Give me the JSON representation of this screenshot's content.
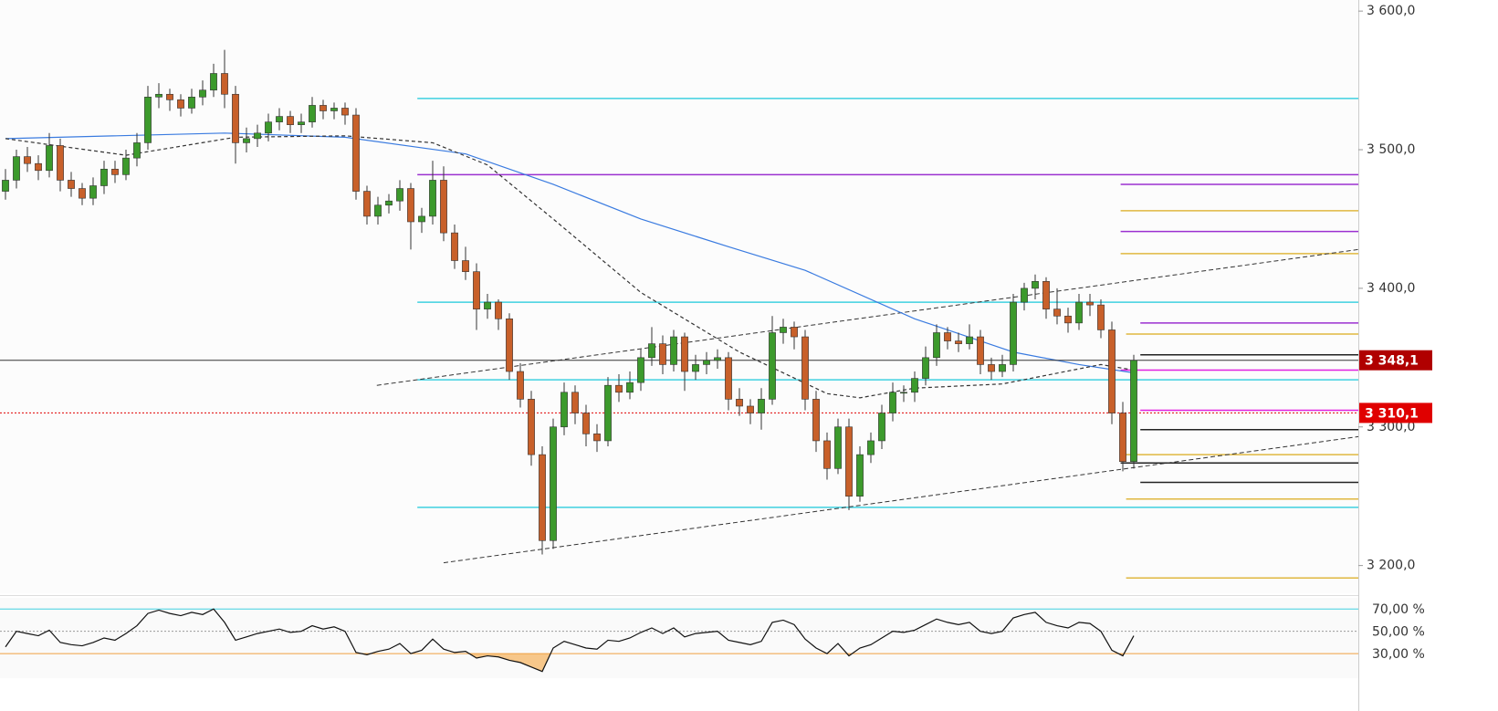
{
  "chart_data": {
    "type": "candlestick",
    "xlim": [
      -0.5,
      123.5
    ],
    "ylim": [
      3180,
      3608
    ],
    "yticks": [
      {
        "value": 3200,
        "label": "3 200,0"
      },
      {
        "value": 3300,
        "label": "3 300,0"
      },
      {
        "value": 3400,
        "label": "3 400,0"
      },
      {
        "value": 3500,
        "label": "3 500,0"
      },
      {
        "value": 3600,
        "label": "3 600,0"
      }
    ],
    "up_color": "#3c9a2c",
    "down_color": "#c8602a",
    "ohlc": [
      [
        3470,
        3486,
        3464,
        3478
      ],
      [
        3478,
        3500,
        3472,
        3495
      ],
      [
        3495,
        3502,
        3484,
        3490
      ],
      [
        3490,
        3496,
        3478,
        3485
      ],
      [
        3485,
        3512,
        3480,
        3503
      ],
      [
        3503,
        3508,
        3470,
        3478
      ],
      [
        3478,
        3484,
        3466,
        3472
      ],
      [
        3472,
        3476,
        3460,
        3465
      ],
      [
        3465,
        3480,
        3460,
        3474
      ],
      [
        3474,
        3492,
        3468,
        3486
      ],
      [
        3486,
        3492,
        3476,
        3482
      ],
      [
        3482,
        3500,
        3478,
        3494
      ],
      [
        3494,
        3512,
        3488,
        3505
      ],
      [
        3505,
        3546,
        3500,
        3538
      ],
      [
        3538,
        3548,
        3530,
        3540
      ],
      [
        3540,
        3544,
        3528,
        3536
      ],
      [
        3536,
        3540,
        3524,
        3530
      ],
      [
        3530,
        3544,
        3526,
        3538
      ],
      [
        3538,
        3550,
        3532,
        3543
      ],
      [
        3543,
        3562,
        3538,
        3555
      ],
      [
        3555,
        3572,
        3530,
        3540
      ],
      [
        3540,
        3546,
        3490,
        3505
      ],
      [
        3505,
        3516,
        3498,
        3508
      ],
      [
        3508,
        3518,
        3502,
        3512
      ],
      [
        3512,
        3526,
        3506,
        3520
      ],
      [
        3520,
        3530,
        3514,
        3524
      ],
      [
        3524,
        3528,
        3512,
        3518
      ],
      [
        3518,
        3526,
        3512,
        3520
      ],
      [
        3520,
        3538,
        3516,
        3532
      ],
      [
        3532,
        3536,
        3522,
        3528
      ],
      [
        3528,
        3534,
        3522,
        3530
      ],
      [
        3530,
        3534,
        3518,
        3525
      ],
      [
        3525,
        3530,
        3464,
        3470
      ],
      [
        3470,
        3474,
        3446,
        3452
      ],
      [
        3452,
        3466,
        3446,
        3460
      ],
      [
        3460,
        3468,
        3454,
        3463
      ],
      [
        3463,
        3478,
        3456,
        3472
      ],
      [
        3472,
        3476,
        3428,
        3448
      ],
      [
        3448,
        3458,
        3440,
        3452
      ],
      [
        3452,
        3492,
        3446,
        3478
      ],
      [
        3478,
        3488,
        3434,
        3440
      ],
      [
        3440,
        3446,
        3414,
        3420
      ],
      [
        3420,
        3430,
        3406,
        3412
      ],
      [
        3412,
        3418,
        3370,
        3385
      ],
      [
        3385,
        3396,
        3378,
        3390
      ],
      [
        3390,
        3392,
        3370,
        3378
      ],
      [
        3378,
        3382,
        3334,
        3340
      ],
      [
        3340,
        3346,
        3314,
        3320
      ],
      [
        3320,
        3326,
        3272,
        3280
      ],
      [
        3280,
        3286,
        3208,
        3218
      ],
      [
        3218,
        3306,
        3212,
        3300
      ],
      [
        3300,
        3332,
        3294,
        3325
      ],
      [
        3325,
        3330,
        3302,
        3310
      ],
      [
        3310,
        3316,
        3286,
        3295
      ],
      [
        3295,
        3302,
        3282,
        3290
      ],
      [
        3290,
        3336,
        3286,
        3330
      ],
      [
        3330,
        3338,
        3318,
        3325
      ],
      [
        3325,
        3340,
        3320,
        3332
      ],
      [
        3332,
        3356,
        3326,
        3350
      ],
      [
        3350,
        3372,
        3344,
        3360
      ],
      [
        3360,
        3366,
        3338,
        3345
      ],
      [
        3345,
        3370,
        3340,
        3365
      ],
      [
        3365,
        3368,
        3326,
        3340
      ],
      [
        3340,
        3352,
        3334,
        3345
      ],
      [
        3345,
        3354,
        3338,
        3348
      ],
      [
        3348,
        3356,
        3342,
        3350
      ],
      [
        3350,
        3354,
        3312,
        3320
      ],
      [
        3320,
        3328,
        3308,
        3315
      ],
      [
        3315,
        3320,
        3302,
        3310
      ],
      [
        3310,
        3328,
        3298,
        3320
      ],
      [
        3320,
        3380,
        3316,
        3368
      ],
      [
        3368,
        3378,
        3360,
        3372
      ],
      [
        3372,
        3376,
        3356,
        3365
      ],
      [
        3365,
        3370,
        3312,
        3320
      ],
      [
        3320,
        3326,
        3282,
        3290
      ],
      [
        3290,
        3296,
        3262,
        3270
      ],
      [
        3270,
        3306,
        3266,
        3300
      ],
      [
        3300,
        3306,
        3240,
        3250
      ],
      [
        3250,
        3286,
        3246,
        3280
      ],
      [
        3280,
        3296,
        3274,
        3290
      ],
      [
        3290,
        3316,
        3284,
        3310
      ],
      [
        3310,
        3332,
        3304,
        3325
      ],
      [
        3325,
        3330,
        3318,
        3325
      ],
      [
        3325,
        3340,
        3318,
        3335
      ],
      [
        3335,
        3358,
        3330,
        3350
      ],
      [
        3350,
        3374,
        3344,
        3368
      ],
      [
        3368,
        3372,
        3356,
        3362
      ],
      [
        3362,
        3368,
        3354,
        3360
      ],
      [
        3360,
        3374,
        3356,
        3365
      ],
      [
        3365,
        3370,
        3338,
        3345
      ],
      [
        3345,
        3350,
        3334,
        3340
      ],
      [
        3340,
        3352,
        3336,
        3345
      ],
      [
        3345,
        3396,
        3340,
        3390
      ],
      [
        3390,
        3404,
        3384,
        3400
      ],
      [
        3400,
        3410,
        3392,
        3405
      ],
      [
        3405,
        3408,
        3378,
        3385
      ],
      [
        3385,
        3400,
        3374,
        3380
      ],
      [
        3380,
        3386,
        3368,
        3375
      ],
      [
        3375,
        3396,
        3370,
        3390
      ],
      [
        3390,
        3396,
        3380,
        3388
      ],
      [
        3388,
        3392,
        3364,
        3370
      ],
      [
        3370,
        3376,
        3302,
        3310
      ],
      [
        3310,
        3318,
        3268,
        3275
      ],
      [
        3275,
        3352,
        3270,
        3348
      ]
    ],
    "moving_averages": [
      {
        "color": "#3a7be0",
        "dashed": false,
        "x": [
          0,
          20,
          31,
          42,
          50,
          58,
          66,
          73,
          83,
          92,
          98,
          103
        ],
        "values": [
          3508,
          3512,
          3509,
          3497,
          3475,
          3450,
          3430,
          3413,
          3378,
          3354,
          3345,
          3339
        ]
      },
      {
        "color": "#333333",
        "dashed": true,
        "x": [
          0,
          11,
          21,
          31,
          39,
          44,
          50,
          58,
          67,
          75,
          78,
          83,
          91,
          100,
          103
        ],
        "values": [
          3508,
          3496,
          3509,
          3510,
          3505,
          3489,
          3450,
          3397,
          3354,
          3324,
          3321,
          3328,
          3331,
          3345,
          3341
        ]
      }
    ],
    "trend_lines": [
      {
        "color": "#333333",
        "x": [
          33.9,
          123.5
        ],
        "values": [
          3330,
          3428
        ]
      },
      {
        "color": "#333333",
        "x": [
          40,
          123.5
        ],
        "values": [
          3202,
          3293
        ]
      }
    ],
    "levels": [
      {
        "value": 3537,
        "color": "#3fd0e0",
        "from": 37.6
      },
      {
        "value": 3390,
        "color": "#3fd0e0",
        "from": 37.6
      },
      {
        "value": 3334,
        "color": "#3fd0e0",
        "from": 37.6
      },
      {
        "value": 3242,
        "color": "#3fd0e0",
        "from": 37.6
      },
      {
        "value": 3482,
        "color": "#9b30d0",
        "from": 37.6
      },
      {
        "value": 3475,
        "color": "#9b30d0",
        "from": 101.8
      },
      {
        "value": 3456,
        "color": "#e0b840",
        "from": 101.8
      },
      {
        "value": 3441,
        "color": "#9b30d0",
        "from": 101.8
      },
      {
        "value": 3425,
        "color": "#e0b840",
        "from": 101.8
      },
      {
        "value": 3375,
        "color": "#9b30d0",
        "from": 103.6
      },
      {
        "value": 3367,
        "color": "#e0b840",
        "from": 102.3
      },
      {
        "value": 3352,
        "color": "#222222",
        "from": 103.6
      },
      {
        "value": 3341,
        "color": "#e020e0",
        "from": 101.8
      },
      {
        "value": 3312,
        "color": "#e020e0",
        "from": 103.6
      },
      {
        "value": 3298,
        "color": "#222222",
        "from": 103.6
      },
      {
        "value": 3280,
        "color": "#e0b840",
        "from": 102.3
      },
      {
        "value": 3274,
        "color": "#222222",
        "from": 101.8
      },
      {
        "value": 3260,
        "color": "#222222",
        "from": 103.6
      },
      {
        "value": 3248,
        "color": "#e0b840",
        "from": 102.3
      },
      {
        "value": 3191,
        "color": "#e0b840",
        "from": 102.3
      }
    ],
    "price_tags": [
      {
        "value": 3348.1,
        "label": "3 348,1",
        "color": "#b00000",
        "line_color": "#333333",
        "dotted": false
      },
      {
        "value": 3310.1,
        "label": "3 310,1",
        "color": "#e00000",
        "line_color": "#e00000",
        "dotted": true
      }
    ],
    "rsi": {
      "type": "line",
      "ylim": [
        8,
        80
      ],
      "yticks": [
        {
          "value": 30,
          "label": "30,00 %"
        },
        {
          "value": 50,
          "label": "50,00 %"
        },
        {
          "value": 70,
          "label": "70,00 %"
        }
      ],
      "tick_line_colors": [
        "#f0a040",
        "#999999",
        "#3fd0e0"
      ],
      "color": "#111111",
      "oversold_fill": "#f7c78a",
      "values": [
        36,
        50,
        48,
        46,
        51,
        40,
        38,
        37,
        40,
        44,
        42,
        48,
        55,
        66,
        69,
        66,
        64,
        67,
        65,
        70,
        58,
        42,
        45,
        48,
        50,
        52,
        49,
        50,
        55,
        52,
        54,
        50,
        31,
        29,
        32,
        34,
        39,
        30,
        33,
        43,
        34,
        31,
        32,
        26,
        28,
        27,
        24,
        22,
        18,
        14,
        35,
        41,
        38,
        35,
        34,
        42,
        41,
        44,
        49,
        53,
        48,
        53,
        45,
        48,
        49,
        50,
        42,
        40,
        38,
        41,
        58,
        60,
        56,
        43,
        35,
        30,
        39,
        28,
        35,
        38,
        44,
        50,
        49,
        51,
        56,
        61,
        58,
        56,
        58,
        50,
        48,
        50,
        62,
        65,
        67,
        58,
        55,
        53,
        58,
        57,
        50,
        33,
        28,
        46
      ]
    }
  }
}
